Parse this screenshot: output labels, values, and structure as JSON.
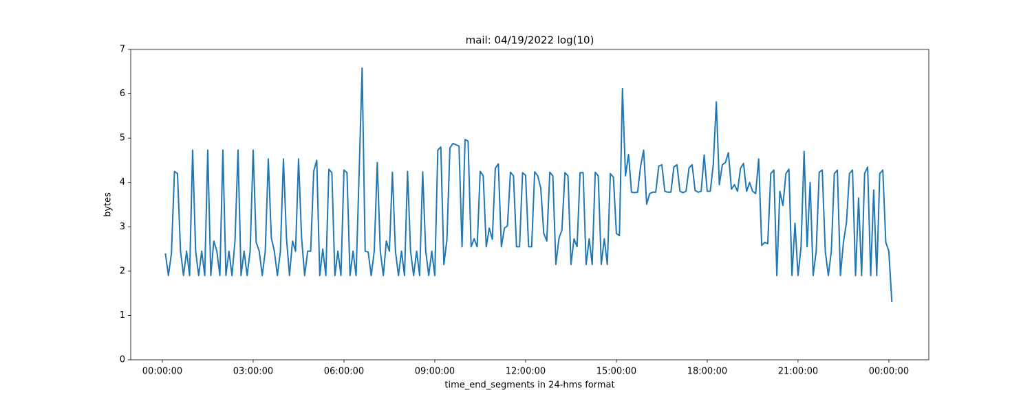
{
  "chart_data": {
    "type": "line",
    "title": "mail: 04/19/2022 log(10)",
    "x_label": "time_end_segments in 24-hms format",
    "y_label": "bytes",
    "xlim": [
      -1.045,
      25.32
    ],
    "ylim": [
      0,
      7
    ],
    "xticks": [
      {
        "value": 0,
        "label": "00:00:00"
      },
      {
        "value": 3,
        "label": "03:00:00"
      },
      {
        "value": 6,
        "label": "06:00:00"
      },
      {
        "value": 9,
        "label": "09:00:00"
      },
      {
        "value": 12,
        "label": "12:00:00"
      },
      {
        "value": 15,
        "label": "15:00:00"
      },
      {
        "value": 18,
        "label": "18:00:00"
      },
      {
        "value": 21,
        "label": "21:00:00"
      },
      {
        "value": 24,
        "label": "00:00:00"
      }
    ],
    "yticks": [
      0,
      1,
      2,
      3,
      4,
      5,
      6,
      7
    ],
    "grid": false,
    "series": [
      {
        "color": "#1f77b4",
        "x": [
          0.1,
          0.2,
          0.3,
          0.4,
          0.5,
          0.6,
          0.7,
          0.8,
          0.9,
          1,
          1.1,
          1.2,
          1.3,
          1.4,
          1.5,
          1.6,
          1.7,
          1.8,
          1.9,
          2,
          2.1,
          2.2,
          2.3,
          2.4,
          2.5,
          2.6,
          2.7,
          2.8,
          2.9,
          3,
          3.1,
          3.2,
          3.3,
          3.4,
          3.5,
          3.6,
          3.7,
          3.8,
          3.9,
          4,
          4.1,
          4.2,
          4.3,
          4.4,
          4.5,
          4.6,
          4.7,
          4.8,
          4.9,
          5,
          5.1,
          5.2,
          5.3,
          5.4,
          5.5,
          5.6,
          5.7,
          5.8,
          5.9,
          6,
          6.1,
          6.2,
          6.3,
          6.4,
          6.5,
          6.6,
          6.7,
          6.8,
          6.9,
          7,
          7.1,
          7.2,
          7.3,
          7.4,
          7.5,
          7.6,
          7.7,
          7.8,
          7.9,
          8,
          8.1,
          8.2,
          8.3,
          8.4,
          8.5,
          8.6,
          8.7,
          8.8,
          8.9,
          9,
          9.1,
          9.2,
          9.3,
          9.4,
          9.5,
          9.6,
          9.7,
          9.8,
          9.9,
          10,
          10.1,
          10.2,
          10.3,
          10.4,
          10.5,
          10.6,
          10.7,
          10.8,
          10.9,
          11,
          11.1,
          11.2,
          11.3,
          11.4,
          11.5,
          11.6,
          11.7,
          11.8,
          11.9,
          12,
          12.1,
          12.2,
          12.3,
          12.4,
          12.5,
          12.6,
          12.7,
          12.8,
          12.9,
          13,
          13.1,
          13.2,
          13.3,
          13.4,
          13.5,
          13.6,
          13.7,
          13.8,
          13.9,
          14,
          14.1,
          14.2,
          14.3,
          14.4,
          14.5,
          14.6,
          14.7,
          14.8,
          14.9,
          15,
          15.1,
          15.2,
          15.3,
          15.4,
          15.5,
          15.6,
          15.7,
          15.8,
          15.9,
          16,
          16.1,
          16.2,
          16.3,
          16.4,
          16.5,
          16.6,
          16.7,
          16.8,
          16.9,
          17,
          17.1,
          17.2,
          17.3,
          17.4,
          17.5,
          17.6,
          17.7,
          17.8,
          17.9,
          18,
          18.1,
          18.2,
          18.3,
          18.4,
          18.5,
          18.6,
          18.7,
          18.8,
          18.9,
          19,
          19.1,
          19.2,
          19.3,
          19.4,
          19.5,
          19.6,
          19.7,
          19.8,
          19.9,
          20,
          20.1,
          20.2,
          20.3,
          20.4,
          20.5,
          20.6,
          20.7,
          20.8,
          20.9,
          21,
          21.1,
          21.2,
          21.3,
          21.4,
          21.5,
          21.6,
          21.7,
          21.8,
          21.9,
          22,
          22.1,
          22.2,
          22.3,
          22.4,
          22.5,
          22.6,
          22.7,
          22.8,
          22.9,
          23,
          23.1,
          23.2,
          23.3,
          23.4,
          23.5,
          23.6,
          23.7,
          23.8,
          23.9,
          24,
          24.1
        ],
        "values": [
          2.4,
          1.9,
          2.4,
          4.25,
          4.2,
          2.45,
          1.9,
          2.45,
          1.9,
          4.73,
          2.45,
          1.9,
          2.45,
          1.9,
          4.73,
          1.9,
          2.68,
          2.45,
          1.9,
          4.73,
          1.9,
          2.45,
          1.9,
          2.68,
          4.73,
          1.9,
          2.45,
          1.9,
          2.45,
          4.73,
          2.65,
          2.45,
          1.9,
          2.45,
          4.53,
          2.75,
          2.45,
          1.9,
          2.45,
          4.53,
          2.75,
          1.9,
          2.68,
          2.45,
          4.53,
          2.75,
          1.9,
          2.45,
          2.45,
          4.25,
          4.5,
          1.9,
          2.5,
          1.9,
          4.3,
          4.22,
          1.9,
          2.45,
          1.9,
          4.28,
          4.22,
          1.9,
          2.45,
          1.9,
          4.2,
          6.58,
          2.45,
          2.43,
          1.9,
          2.45,
          4.45,
          2.45,
          1.9,
          2.68,
          2.45,
          4.23,
          2.45,
          1.9,
          2.45,
          1.9,
          4.25,
          2.45,
          1.9,
          2.45,
          1.9,
          4.24,
          2.45,
          1.9,
          2.45,
          1.9,
          4.73,
          4.8,
          2.15,
          2.7,
          4.78,
          4.88,
          4.85,
          4.82,
          2.55,
          4.97,
          4.93,
          2.55,
          2.73,
          2.55,
          4.25,
          4.15,
          2.55,
          2.97,
          2.72,
          4.32,
          4.42,
          2.55,
          2.97,
          3.02,
          4.23,
          4.15,
          2.55,
          2.55,
          4.22,
          4.16,
          2.55,
          2.55,
          4.24,
          4.15,
          3.88,
          2.85,
          2.68,
          4.23,
          4.15,
          2.15,
          2.73,
          2.93,
          4.22,
          4.15,
          2.15,
          2.73,
          2.55,
          4.22,
          4.22,
          2.15,
          2.73,
          2.15,
          4.23,
          4.15,
          2.15,
          2.73,
          2.15,
          4.2,
          4.12,
          2.85,
          2.8,
          6.12,
          4.15,
          4.63,
          3.78,
          3.77,
          3.78,
          4.37,
          4.73,
          3.51,
          3.75,
          3.78,
          3.78,
          4.37,
          4.4,
          3.8,
          3.78,
          3.78,
          4.35,
          4.4,
          3.8,
          3.77,
          3.8,
          4.33,
          4.4,
          3.82,
          3.78,
          3.8,
          4.62,
          3.8,
          3.8,
          4.4,
          5.82,
          3.95,
          4.4,
          4.45,
          4.67,
          3.85,
          3.95,
          3.8,
          4.32,
          4.43,
          3.8,
          4,
          3.8,
          3.75,
          4.53,
          2.58,
          2.65,
          2.62,
          4.2,
          4.28,
          1.9,
          3.8,
          3.48,
          4.2,
          4.3,
          1.9,
          3.08,
          1.9,
          2.55,
          4.7,
          2.55,
          4,
          1.9,
          2.45,
          4.23,
          4.28,
          2.45,
          1.9,
          2.45,
          4.2,
          4.28,
          1.9,
          2.65,
          3.1,
          4.2,
          4.28,
          1.9,
          3.65,
          1.9,
          4.2,
          4.35,
          1.9,
          3.83,
          1.9,
          4.2,
          4.28,
          2.65,
          2.45,
          1.3
        ]
      }
    ]
  }
}
